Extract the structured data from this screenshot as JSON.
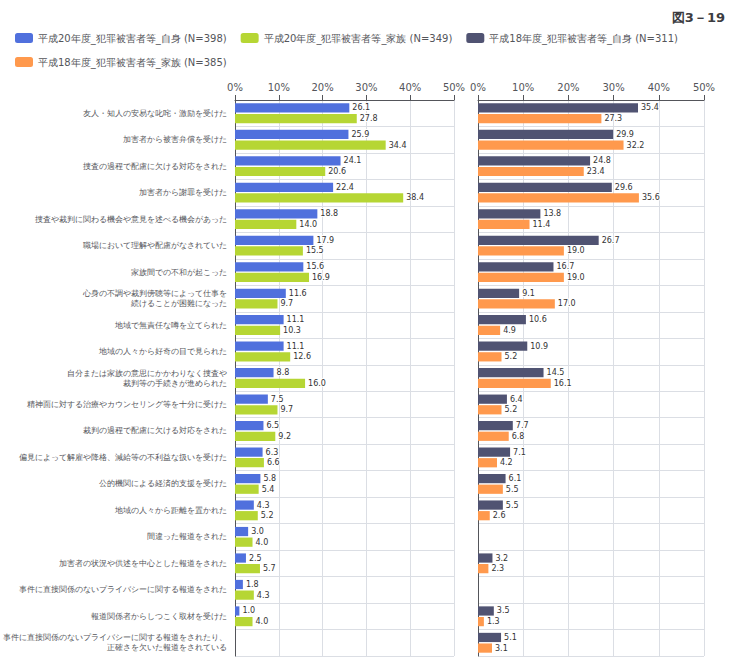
{
  "chart_data": [
    {
      "type": "bar",
      "title": "図3－19",
      "orientation": "horizontal",
      "categories": [
        "友人・知人の安易な叱咤・激励を受けた",
        "加害者から被害弁償を受けた",
        "捜査の過程で配慮に欠ける対応をされた",
        "加害者から謝罪を受けた",
        "捜査や裁判に関わる機会や意見を述べる機会があった",
        "職場において理解や配慮がなされていた",
        "家族間での不和が起こった",
        "心身の不調や裁判傍聴等によって仕事を\n続けることが困難になった",
        "地域で無責任な噂を立てられた",
        "地域の人々から好奇の目で見られた",
        "自分または家族の意思にかかわりなく捜査や\n裁判等の手続きが進められた",
        "精神面に対する治療やカウンセリング等を十分に受けた",
        "裁判の過程で配慮に欠ける対応をされた",
        "偏見によって解雇や降格、減給等の不利益な扱いを受けた",
        "公的機関による経済的支援を受けた",
        "地域の人々から距離を置かれた",
        "間違った報道をされた",
        "加害者の状況や供述を中心とした報道をされた",
        "事件に直接関係のないプライバシーに関する報道をされた",
        "報道関係者からしつこく取材を受けた",
        "事件に直接関係のないプライバシーに関する報道をされたり、\n正確さを欠いた報道をされている"
      ],
      "series": [
        {
          "name": "平成20年度_犯罪被害者等_自身 (N=398)",
          "values": [
            26.1,
            25.9,
            24.1,
            22.4,
            18.8,
            17.9,
            15.6,
            11.6,
            11.1,
            11.1,
            8.8,
            7.5,
            6.5,
            6.3,
            5.8,
            4.3,
            3.0,
            2.5,
            1.8,
            1.0,
            null
          ],
          "value_labels": [
            "26.1",
            "25.9",
            "24.1",
            "22.4",
            "18.8",
            "17.9",
            "15.6",
            "11.6",
            "11.1",
            "11.1",
            "8.8",
            "7.5",
            "6.5",
            "6.3",
            "5.8",
            "4.3",
            "3.0",
            "2.5",
            "1.8",
            "1.0",
            null
          ]
        },
        {
          "name": "平成20年度_犯罪被害者等_家族 (N=349)",
          "values": [
            27.8,
            34.4,
            20.6,
            38.4,
            14.0,
            15.5,
            16.9,
            9.7,
            10.3,
            12.6,
            16.0,
            9.7,
            9.2,
            6.6,
            5.4,
            5.2,
            4.0,
            5.7,
            4.3,
            4.0,
            null
          ],
          "value_labels": [
            "27.8",
            "34.4",
            "20.6",
            "38.4",
            "14.0",
            "15.5",
            "16.9",
            "9.7",
            "10.3",
            "12.6",
            "16.0",
            "9.7",
            "9.2",
            "6.6",
            "5.4",
            "5.2",
            "4.0",
            "5.7",
            "4.3",
            "4.0",
            null
          ]
        }
      ],
      "xlim": [
        0,
        50
      ],
      "xticks": [
        {
          "value": 0,
          "label": "0%"
        },
        {
          "value": 10,
          "label": "10%"
        },
        {
          "value": 20,
          "label": "20%"
        },
        {
          "value": 30,
          "label": "30%"
        },
        {
          "value": 40,
          "label": "40%"
        },
        {
          "value": 50,
          "label": "50%"
        }
      ],
      "data_labels": true,
      "grid": true
    },
    {
      "type": "bar",
      "orientation": "horizontal",
      "categories": [
        "友人・知人の安易な叱咤・激励を受けた",
        "加害者から被害弁償を受けた",
        "捜査の過程で配慮に欠ける対応をされた",
        "加害者から謝罪を受けた",
        "捜査や裁判に関わる機会や意見を述べる機会があった",
        "職場において理解や配慮がなされていた",
        "家族間での不和が起こった",
        "心身の不調や裁判傍聴等によって仕事を\n続けることが困難になった",
        "地域で無責任な噂を立てられた",
        "地域の人々から好奇の目で見られた",
        "自分または家族の意思にかかわりなく捜査や\n裁判等の手続きが進められた",
        "精神面に対する治療やカウンセリング等を十分に受けた",
        "裁判の過程で配慮に欠ける対応をされた",
        "偏見によって解雇や降格、減給等の不利益な扱いを受けた",
        "公的機関による経済的支援を受けた",
        "地域の人々から距離を置かれた",
        "間違った報道をされた",
        "加害者の状況や供述を中心とした報道をされた",
        "事件に直接関係のないプライバシーに関する報道をされた",
        "報道関係者からしつこく取材を受けた",
        "事件に直接関係のないプライバシーに関する報道をされたり、\n正確さを欠いた報道をされている"
      ],
      "series": [
        {
          "name": "平成18年度_犯罪被害者等_自身 (N=311)",
          "values": [
            35.4,
            29.9,
            24.8,
            29.6,
            13.8,
            26.7,
            16.7,
            9.1,
            10.6,
            10.9,
            14.5,
            6.4,
            7.7,
            7.1,
            6.1,
            5.5,
            null,
            3.2,
            null,
            3.5,
            5.1
          ],
          "value_labels": [
            "35.4",
            "29.9",
            "24.8",
            "29.6",
            "13.8",
            "26.7",
            "16.7",
            "9.1",
            "10.6",
            "10.9",
            "14.5",
            "6.4",
            "7.7",
            "7.1",
            "6.1",
            "5.5",
            null,
            "3.2",
            null,
            "3.5",
            "5.1"
          ]
        },
        {
          "name": "平成18年度_犯罪被害者等_家族 (N=385)",
          "values": [
            27.3,
            32.2,
            23.4,
            35.6,
            11.4,
            19.0,
            19.0,
            17.0,
            4.9,
            5.2,
            16.1,
            5.2,
            6.8,
            4.2,
            5.5,
            2.6,
            null,
            2.3,
            null,
            1.3,
            3.1
          ],
          "value_labels": [
            "27.3",
            "32.2",
            "23.4",
            "35.6",
            "11.4",
            "19.0",
            "19.0",
            "17.0",
            "4.9",
            "5.2",
            "16.1",
            "5.2",
            "6.8",
            "4.2",
            "5.5",
            "2.6",
            null,
            "2.3",
            null,
            "1.3",
            "3.1"
          ]
        }
      ],
      "xlim": [
        0,
        50
      ],
      "xticks": [
        {
          "value": 0,
          "label": "0%"
        },
        {
          "value": 10,
          "label": "10%"
        },
        {
          "value": 20,
          "label": "20%"
        },
        {
          "value": 30,
          "label": "30%"
        },
        {
          "value": 40,
          "label": "40%"
        },
        {
          "value": 50,
          "label": "50%"
        }
      ],
      "data_labels": true,
      "grid": true,
      "tick_labels": "x"
    }
  ]
}
